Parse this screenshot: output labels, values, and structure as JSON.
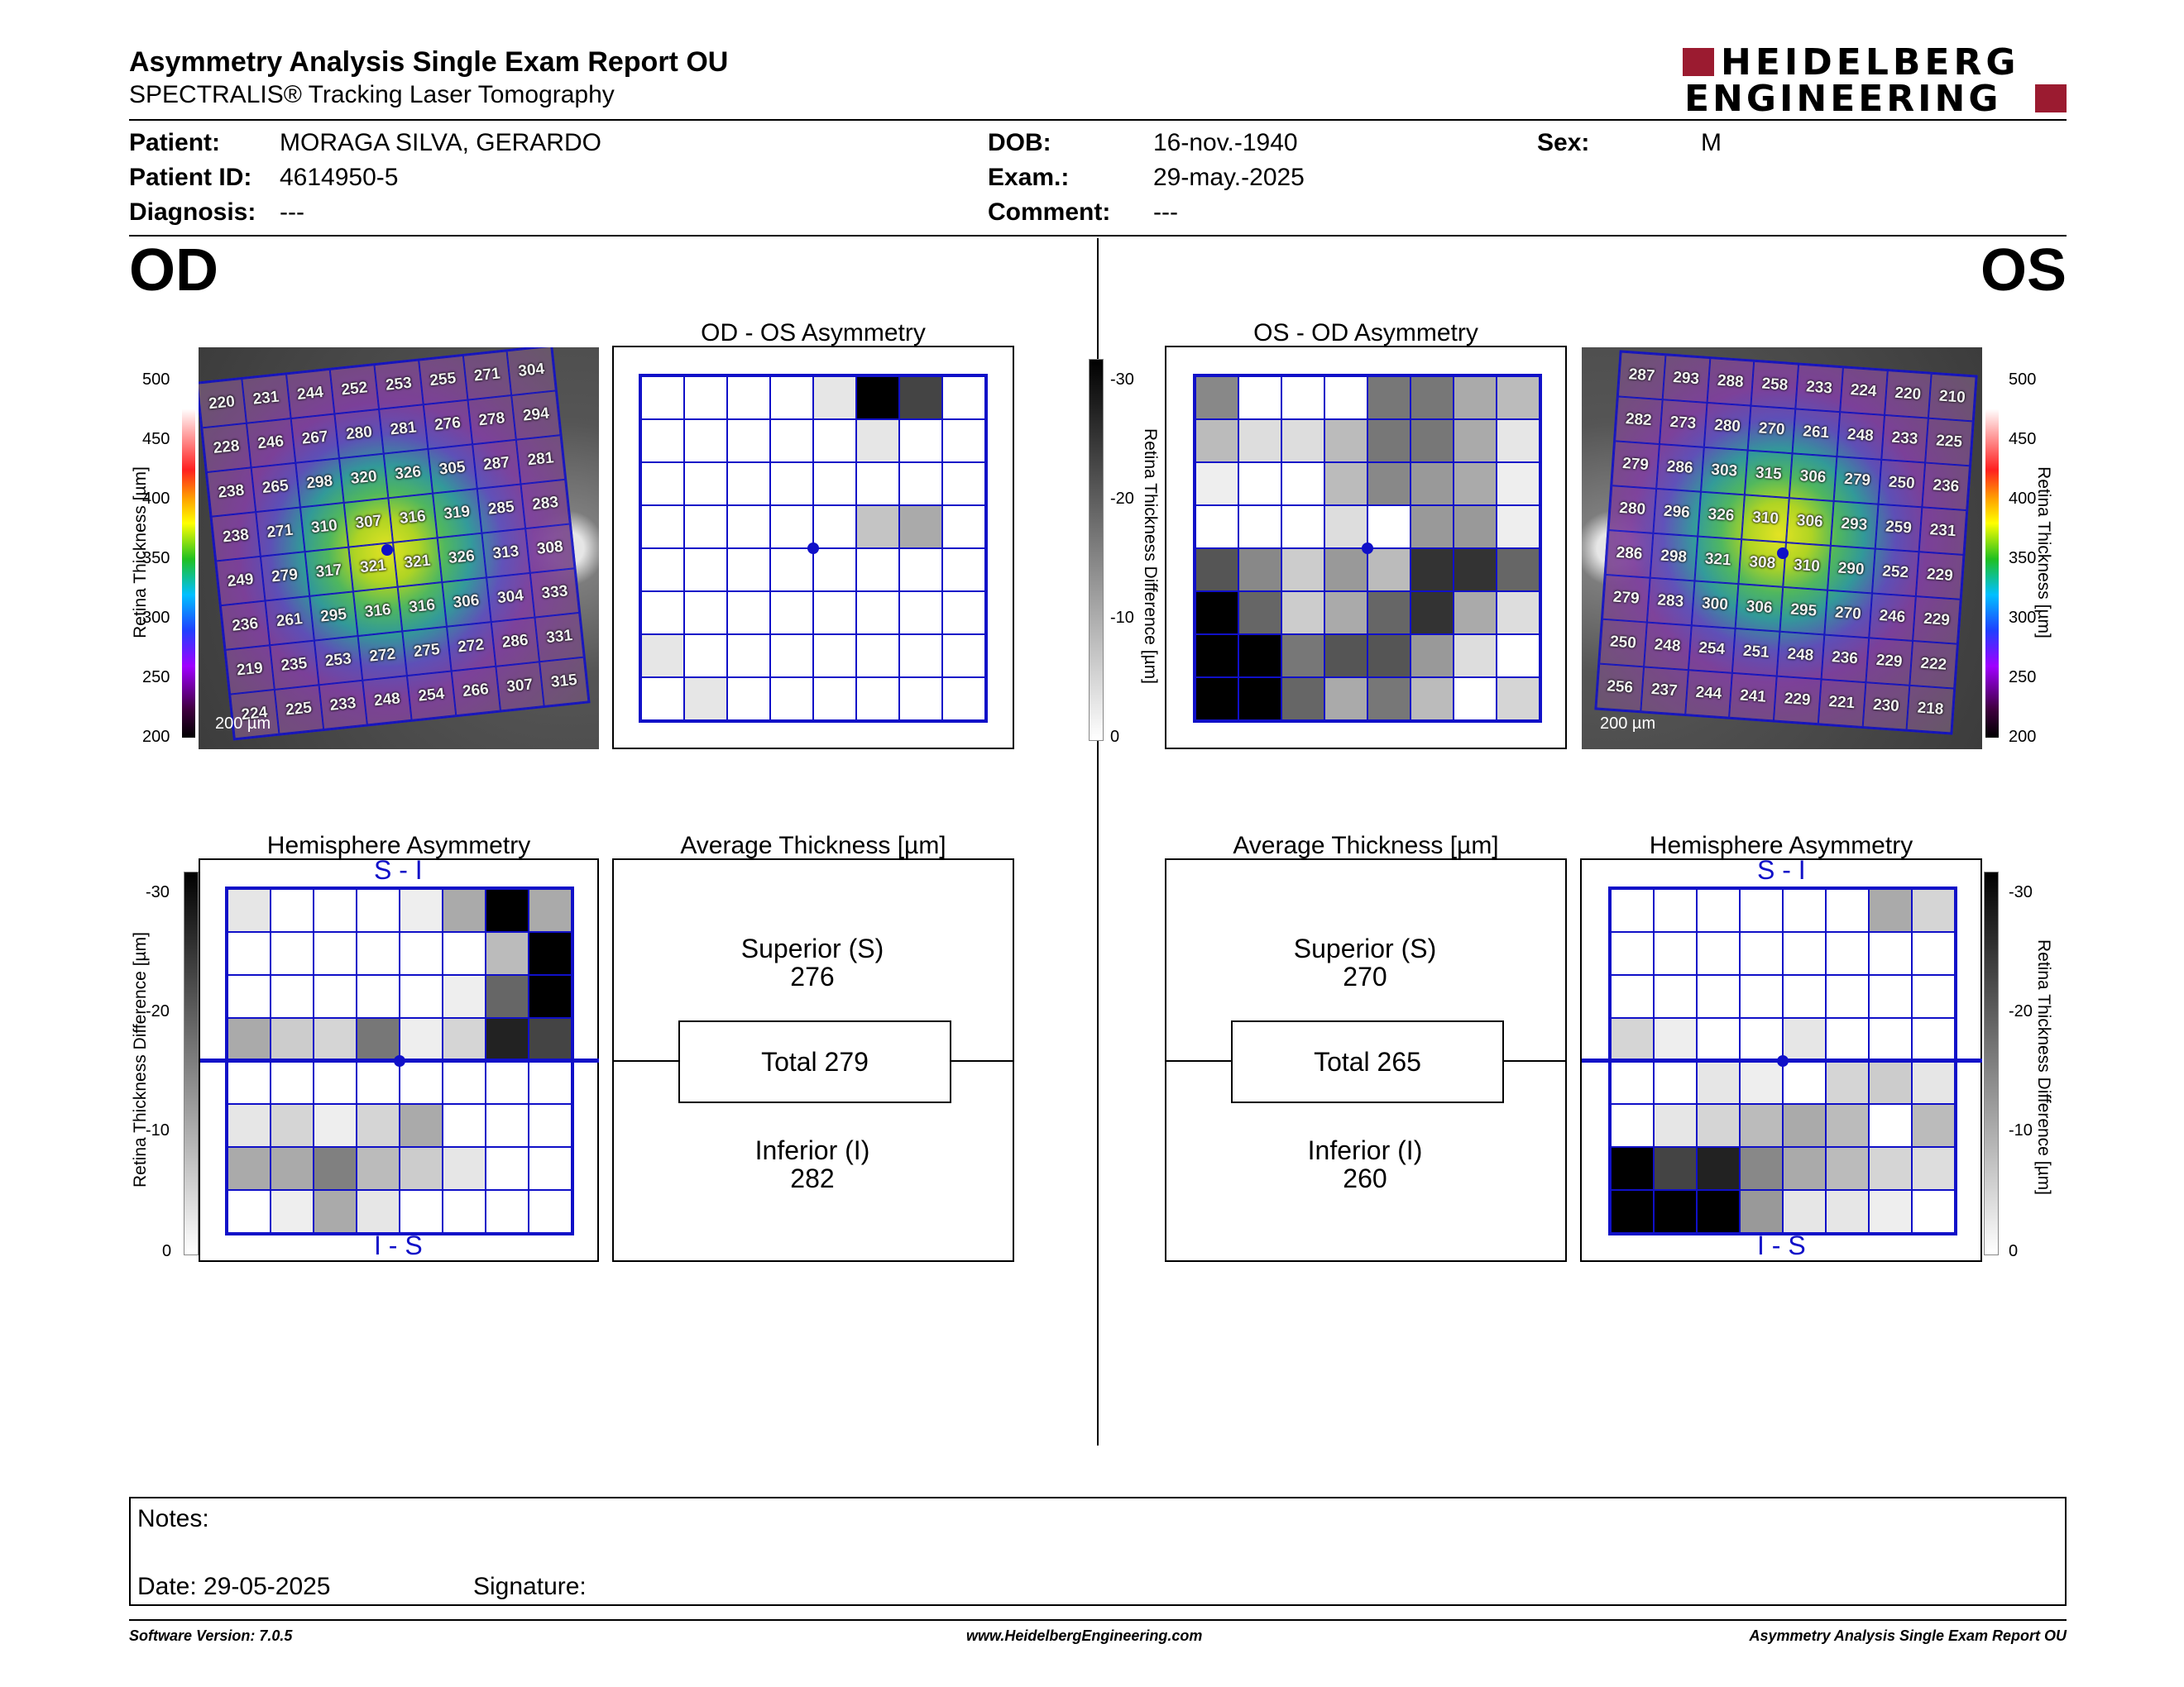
{
  "header": {
    "title": "Asymmetry Analysis Single Exam Report OU",
    "subtitle": "SPECTRALIS® Tracking Laser Tomography",
    "logo_line1": "HEIDELBERG",
    "logo_line2": "ENGINEERING",
    "logo_color": "#9b1b30"
  },
  "patient": {
    "patient_label": "Patient:",
    "patient_value": "MORAGA SILVA, GERARDO",
    "id_label": "Patient ID:",
    "id_value": "4614950-5",
    "diagnosis_label": "Diagnosis:",
    "diagnosis_value": "---",
    "dob_label": "DOB:",
    "dob_value": "16-nov.-1940",
    "exam_label": "Exam.:",
    "exam_value": "29-may.-2025",
    "comment_label": "Comment:",
    "comment_value": "---",
    "sex_label": "Sex:",
    "sex_value": "M"
  },
  "od": {
    "label": "OD",
    "asym_title": "OD - OS Asymmetry",
    "hemi_title": "Hemisphere Asymmetry",
    "avg_title": "Average Thickness [µm]",
    "superior_label": "Superior (S)",
    "superior_value": "276",
    "total_label": "Total 279",
    "inferior_label": "Inferior (I)",
    "inferior_value": "282",
    "scalebar": "200 µm",
    "hemi_top": "S - I",
    "hemi_bottom": "I - S",
    "thickness_grid": [
      [
        220,
        231,
        244,
        252,
        253,
        255,
        271,
        304
      ],
      [
        228,
        246,
        267,
        280,
        281,
        276,
        278,
        294
      ],
      [
        238,
        265,
        298,
        320,
        326,
        305,
        287,
        281
      ],
      [
        238,
        271,
        310,
        307,
        316,
        319,
        285,
        283
      ],
      [
        249,
        279,
        317,
        321,
        321,
        326,
        313,
        308
      ],
      [
        236,
        261,
        295,
        316,
        316,
        306,
        304,
        333
      ],
      [
        219,
        235,
        253,
        272,
        275,
        272,
        286,
        331
      ],
      [
        224,
        225,
        233,
        248,
        254,
        266,
        307,
        315
      ]
    ],
    "asym_grid": [
      [
        0,
        0,
        0,
        0,
        3,
        30,
        22,
        0
      ],
      [
        0,
        0,
        0,
        0,
        0,
        3,
        0,
        0
      ],
      [
        0,
        0,
        0,
        0,
        0,
        0,
        0,
        0
      ],
      [
        0,
        0,
        0,
        0,
        0,
        7,
        10,
        0
      ],
      [
        0,
        0,
        0,
        0,
        0,
        0,
        0,
        0
      ],
      [
        0,
        0,
        0,
        0,
        0,
        0,
        0,
        0
      ],
      [
        3,
        0,
        0,
        0,
        0,
        0,
        0,
        0
      ],
      [
        0,
        3,
        0,
        0,
        0,
        0,
        0,
        0
      ]
    ],
    "hemi_grid": [
      [
        3,
        0,
        0,
        0,
        2,
        10,
        30,
        10
      ],
      [
        0,
        0,
        0,
        0,
        0,
        0,
        8,
        30
      ],
      [
        0,
        0,
        0,
        0,
        0,
        2,
        18,
        30
      ],
      [
        10,
        6,
        5,
        16,
        2,
        5,
        26,
        22
      ],
      [
        0,
        0,
        0,
        0,
        0,
        0,
        0,
        0
      ],
      [
        3,
        5,
        2,
        5,
        10,
        0,
        0,
        0
      ],
      [
        10,
        10,
        15,
        8,
        6,
        3,
        0,
        0
      ],
      [
        0,
        2,
        10,
        3,
        0,
        0,
        0,
        0
      ]
    ]
  },
  "os": {
    "label": "OS",
    "asym_title": "OS - OD Asymmetry",
    "hemi_title": "Hemisphere Asymmetry",
    "avg_title": "Average Thickness [µm]",
    "superior_label": "Superior (S)",
    "superior_value": "270",
    "total_label": "Total 265",
    "inferior_label": "Inferior (I)",
    "inferior_value": "260",
    "scalebar": "200 µm",
    "hemi_top": "S - I",
    "hemi_bottom": "I - S",
    "thickness_grid": [
      [
        287,
        293,
        288,
        258,
        233,
        224,
        220,
        210
      ],
      [
        282,
        273,
        280,
        270,
        261,
        248,
        233,
        225
      ],
      [
        279,
        286,
        303,
        315,
        306,
        279,
        250,
        236
      ],
      [
        280,
        296,
        326,
        310,
        306,
        293,
        259,
        231
      ],
      [
        286,
        298,
        321,
        308,
        310,
        290,
        252,
        229
      ],
      [
        279,
        283,
        300,
        306,
        295,
        270,
        246,
        229
      ],
      [
        250,
        248,
        254,
        251,
        248,
        236,
        229,
        222
      ],
      [
        256,
        237,
        244,
        241,
        229,
        221,
        230,
        218
      ]
    ],
    "asym_grid": [
      [
        14,
        0,
        0,
        0,
        16,
        16,
        10,
        8
      ],
      [
        8,
        4,
        4,
        8,
        16,
        16,
        10,
        3
      ],
      [
        2,
        0,
        0,
        8,
        14,
        12,
        10,
        2
      ],
      [
        0,
        0,
        0,
        4,
        0,
        12,
        12,
        2
      ],
      [
        20,
        14,
        6,
        12,
        8,
        24,
        24,
        18
      ],
      [
        30,
        18,
        6,
        10,
        18,
        24,
        10,
        4
      ],
      [
        30,
        30,
        16,
        20,
        20,
        12,
        4,
        0
      ],
      [
        30,
        30,
        18,
        10,
        16,
        8,
        0,
        5
      ]
    ],
    "hemi_grid": [
      [
        0,
        0,
        0,
        0,
        0,
        0,
        10,
        5
      ],
      [
        0,
        0,
        0,
        0,
        0,
        0,
        0,
        0
      ],
      [
        0,
        0,
        0,
        0,
        0,
        0,
        0,
        0
      ],
      [
        5,
        2,
        0,
        0,
        3,
        0,
        0,
        0
      ],
      [
        0,
        0,
        3,
        2,
        0,
        5,
        6,
        3
      ],
      [
        0,
        3,
        5,
        8,
        10,
        8,
        0,
        8
      ],
      [
        30,
        22,
        26,
        14,
        10,
        8,
        5,
        4
      ],
      [
        30,
        30,
        30,
        12,
        3,
        3,
        2,
        0
      ]
    ]
  },
  "scales": {
    "thickness_label": "Retina Thickness [µm]",
    "thickness_ticks": [
      "500",
      "450",
      "400",
      "350",
      "300",
      "250",
      "200"
    ],
    "diff_label": "Retina Thickness Difference [µm]",
    "diff_ticks": [
      "-30",
      "-20",
      "-10",
      "0"
    ]
  },
  "notes": {
    "notes_label": "Notes:",
    "date_label": "Date: 29-05-2025",
    "signature_label": "Signature:"
  },
  "footer": {
    "software": "Software Version: 7.0.5",
    "website": "www.HeidelbergEngineering.com",
    "report": "Asymmetry Analysis Single Exam Report OU"
  }
}
